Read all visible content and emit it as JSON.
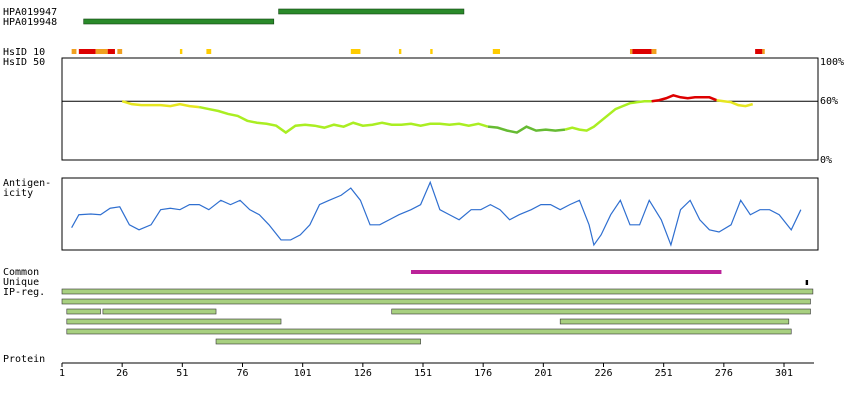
{
  "antibodies": [
    {
      "label": "HPA019947",
      "start": 91,
      "end": 168
    },
    {
      "label": "HPA019948",
      "start": 10,
      "end": 89
    }
  ],
  "hsid10": {
    "label": "HsID 10",
    "segments": [
      {
        "start": 5,
        "end": 7,
        "color": "#f0a020"
      },
      {
        "start": 8,
        "end": 15,
        "color": "#dd0000"
      },
      {
        "start": 15,
        "end": 20,
        "color": "#f0a020"
      },
      {
        "start": 20,
        "end": 23,
        "color": "#dd0000"
      },
      {
        "start": 24,
        "end": 26,
        "color": "#f0a020"
      },
      {
        "start": 50,
        "end": 51,
        "color": "#ffcc00"
      },
      {
        "start": 61,
        "end": 63,
        "color": "#ffcc00"
      },
      {
        "start": 121,
        "end": 125,
        "color": "#ffcc00"
      },
      {
        "start": 141,
        "end": 142,
        "color": "#ffcc00"
      },
      {
        "start": 154,
        "end": 155,
        "color": "#ffcc00"
      },
      {
        "start": 180,
        "end": 183,
        "color": "#ffcc00"
      },
      {
        "start": 237,
        "end": 238,
        "color": "#f0a020"
      },
      {
        "start": 238,
        "end": 246,
        "color": "#dd0000"
      },
      {
        "start": 246,
        "end": 248,
        "color": "#f0a020"
      },
      {
        "start": 289,
        "end": 292,
        "color": "#dd0000"
      },
      {
        "start": 292,
        "end": 293,
        "color": "#f0a020"
      }
    ]
  },
  "hsid50": {
    "label": "HsID 50",
    "ylim": [
      0,
      100
    ],
    "reference": 60,
    "yticks": [
      {
        "value": 100,
        "label": "100%"
      },
      {
        "value": 60,
        "label": "60%"
      },
      {
        "value": 0,
        "label": "0%"
      }
    ],
    "pieces": [
      {
        "color": "#e6e620",
        "start": 26,
        "step": 4,
        "values": [
          60,
          57,
          56,
          56,
          56,
          55,
          57,
          55,
          54
        ]
      },
      {
        "color": "#aaee22",
        "start": 58,
        "step": 4,
        "values": [
          54,
          52,
          50,
          47,
          45,
          40,
          38,
          37,
          35,
          28,
          35,
          36,
          35,
          33,
          36,
          34,
          38,
          35,
          36,
          38,
          36,
          36,
          37,
          35,
          37,
          37,
          36,
          37,
          35,
          37,
          34
        ]
      },
      {
        "color": "#66bb33",
        "start": 178,
        "step": 4,
        "values": [
          34,
          33,
          30,
          28,
          34,
          30,
          31,
          30,
          31
        ]
      },
      {
        "color": "#aaee22",
        "start": 210,
        "step": 3,
        "values": [
          31,
          33,
          31,
          30,
          34,
          40,
          46,
          52,
          55,
          58,
          59,
          60,
          60
        ]
      },
      {
        "color": "#dd0000",
        "start": 246,
        "step": 3,
        "values": [
          60,
          61,
          63,
          66,
          64,
          63,
          64,
          64,
          64,
          61
        ]
      },
      {
        "color": "#e6e620",
        "start": 273,
        "step": 3,
        "values": [
          61,
          60,
          59,
          56,
          55,
          57
        ]
      }
    ]
  },
  "antigenicity": {
    "label": [
      "Antigen-",
      "icity"
    ],
    "color": "#2f6fd0",
    "ylim": [
      0,
      100
    ],
    "x": [
      5,
      8,
      13,
      17,
      21,
      25,
      29,
      33,
      38,
      42,
      46,
      50,
      54,
      58,
      62,
      67,
      71,
      75,
      79,
      83,
      87,
      92,
      96,
      100,
      104,
      108,
      112,
      117,
      121,
      125,
      129,
      133,
      137,
      141,
      146,
      150,
      154,
      158,
      162,
      166,
      171,
      175,
      179,
      183,
      187,
      191,
      196,
      200,
      204,
      208,
      212,
      216,
      220,
      222,
      225,
      229,
      233,
      237,
      241,
      245,
      250,
      254,
      258,
      262,
      266,
      270,
      274,
      279,
      283,
      287,
      291,
      295,
      299,
      304,
      308
    ],
    "values": [
      31,
      49,
      50,
      49,
      58,
      60,
      35,
      28,
      35,
      56,
      58,
      56,
      63,
      63,
      56,
      69,
      63,
      69,
      56,
      49,
      35,
      14,
      14,
      21,
      35,
      63,
      69,
      76,
      86,
      69,
      35,
      35,
      42,
      49,
      56,
      63,
      94,
      56,
      49,
      42,
      56,
      56,
      63,
      56,
      42,
      49,
      56,
      63,
      63,
      56,
      63,
      69,
      35,
      7,
      21,
      49,
      69,
      35,
      35,
      69,
      42,
      7,
      56,
      69,
      42,
      28,
      25,
      35,
      69,
      49,
      56,
      56,
      49,
      28,
      56
    ]
  },
  "common": {
    "label": "Common",
    "start": 146,
    "end": 275,
    "color": "#bb2299"
  },
  "unique": {
    "label": "Unique",
    "start": 310,
    "end": 311,
    "color": "#000000"
  },
  "ipreg": {
    "label": "IP-reg.",
    "color": "#a8d080",
    "rows": [
      [
        {
          "start": 1,
          "end": 313
        }
      ],
      [
        {
          "start": 1,
          "end": 312
        }
      ],
      [
        {
          "start": 3,
          "end": 17
        },
        {
          "start": 18,
          "end": 65
        },
        {
          "start": 138,
          "end": 312
        }
      ],
      [
        {
          "start": 3,
          "end": 92
        },
        {
          "start": 208,
          "end": 303
        }
      ],
      [
        {
          "start": 3,
          "end": 304
        }
      ],
      [
        {
          "start": 65,
          "end": 150
        }
      ]
    ]
  },
  "protein": {
    "label": "Protein",
    "ticks": [
      1,
      26,
      51,
      76,
      101,
      126,
      151,
      176,
      201,
      226,
      251,
      276,
      301
    ]
  }
}
